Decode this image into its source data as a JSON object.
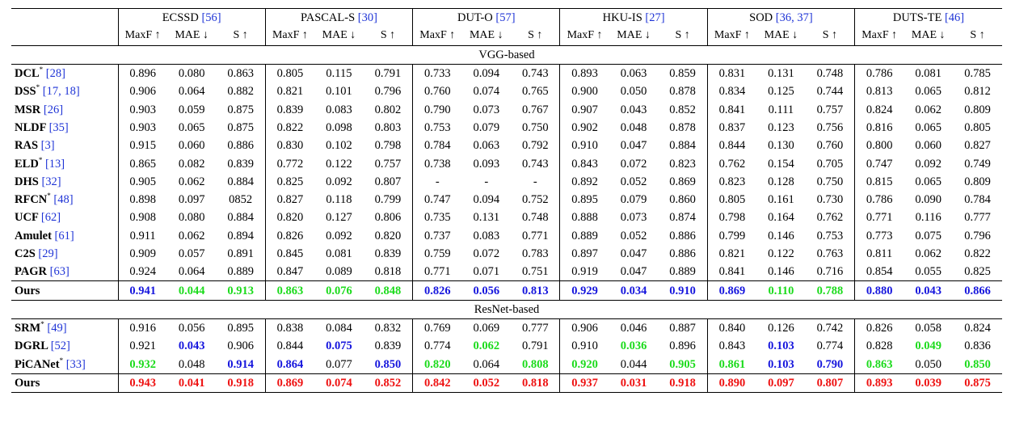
{
  "datasets": [
    {
      "name": "ECSSD",
      "ref": "[56]"
    },
    {
      "name": "PASCAL-S",
      "ref": "[30]"
    },
    {
      "name": "DUT-O",
      "ref": "[57]"
    },
    {
      "name": "HKU-IS",
      "ref": "[27]"
    },
    {
      "name": "SOD",
      "ref": "[36, 37]"
    },
    {
      "name": "DUTS-TE",
      "ref": "[46]"
    }
  ],
  "metrics": [
    "MaxF ↑",
    "MAE ↓",
    "S ↑"
  ],
  "color_legend": {
    "b": "#1515dd",
    "g": "#1bdb1b",
    "r": "#ee1111"
  },
  "sections": [
    {
      "title": "VGG-based",
      "rows": [
        {
          "name": "DCL",
          "star": true,
          "ref": "[28]",
          "values": [
            "0.896",
            "0.080",
            "0.863",
            "0.805",
            "0.115",
            "0.791",
            "0.733",
            "0.094",
            "0.743",
            "0.893",
            "0.063",
            "0.859",
            "0.831",
            "0.131",
            "0.748",
            "0.786",
            "0.081",
            "0.785"
          ]
        },
        {
          "name": "DSS",
          "star": true,
          "ref": "[17, 18]",
          "values": [
            "0.906",
            "0.064",
            "0.882",
            "0.821",
            "0.101",
            "0.796",
            "0.760",
            "0.074",
            "0.765",
            "0.900",
            "0.050",
            "0.878",
            "0.834",
            "0.125",
            "0.744",
            "0.813",
            "0.065",
            "0.812"
          ]
        },
        {
          "name": "MSR",
          "star": false,
          "ref": "[26]",
          "values": [
            "0.903",
            "0.059",
            "0.875",
            "0.839",
            "0.083",
            "0.802",
            "0.790",
            "0.073",
            "0.767",
            "0.907",
            "0.043",
            "0.852",
            "0.841",
            "0.111",
            "0.757",
            "0.824",
            "0.062",
            "0.809"
          ]
        },
        {
          "name": "NLDF",
          "star": false,
          "ref": "[35]",
          "values": [
            "0.903",
            "0.065",
            "0.875",
            "0.822",
            "0.098",
            "0.803",
            "0.753",
            "0.079",
            "0.750",
            "0.902",
            "0.048",
            "0.878",
            "0.837",
            "0.123",
            "0.756",
            "0.816",
            "0.065",
            "0.805"
          ]
        },
        {
          "name": "RAS",
          "star": false,
          "ref": "[3]",
          "values": [
            "0.915",
            "0.060",
            "0.886",
            "0.830",
            "0.102",
            "0.798",
            "0.784",
            "0.063",
            "0.792",
            "0.910",
            "0.047",
            "0.884",
            "0.844",
            "0.130",
            "0.760",
            "0.800",
            "0.060",
            "0.827"
          ]
        },
        {
          "name": "ELD",
          "star": true,
          "ref": "[13]",
          "values": [
            "0.865",
            "0.082",
            "0.839",
            "0.772",
            "0.122",
            "0.757",
            "0.738",
            "0.093",
            "0.743",
            "0.843",
            "0.072",
            "0.823",
            "0.762",
            "0.154",
            "0.705",
            "0.747",
            "0.092",
            "0.749"
          ]
        },
        {
          "name": "DHS",
          "star": false,
          "ref": "[32]",
          "values": [
            "0.905",
            "0.062",
            "0.884",
            "0.825",
            "0.092",
            "0.807",
            "-",
            "-",
            "-",
            "0.892",
            "0.052",
            "0.869",
            "0.823",
            "0.128",
            "0.750",
            "0.815",
            "0.065",
            "0.809"
          ]
        },
        {
          "name": "RFCN",
          "star": true,
          "ref": "[48]",
          "values": [
            "0.898",
            "0.097",
            "0852",
            "0.827",
            "0.118",
            "0.799",
            "0.747",
            "0.094",
            "0.752",
            "0.895",
            "0.079",
            "0.860",
            "0.805",
            "0.161",
            "0.730",
            "0.786",
            "0.090",
            "0.784"
          ]
        },
        {
          "name": "UCF",
          "star": false,
          "ref": "[62]",
          "values": [
            "0.908",
            "0.080",
            "0.884",
            "0.820",
            "0.127",
            "0.806",
            "0.735",
            "0.131",
            "0.748",
            "0.888",
            "0.073",
            "0.874",
            "0.798",
            "0.164",
            "0.762",
            "0.771",
            "0.116",
            "0.777"
          ]
        },
        {
          "name": "Amulet",
          "star": false,
          "ref": "[61]",
          "values": [
            "0.911",
            "0.062",
            "0.894",
            "0.826",
            "0.092",
            "0.820",
            "0.737",
            "0.083",
            "0.771",
            "0.889",
            "0.052",
            "0.886",
            "0.799",
            "0.146",
            "0.753",
            "0.773",
            "0.075",
            "0.796"
          ]
        },
        {
          "name": "C2S",
          "star": false,
          "ref": "[29]",
          "values": [
            "0.909",
            "0.057",
            "0.891",
            "0.845",
            "0.081",
            "0.839",
            "0.759",
            "0.072",
            "0.783",
            "0.897",
            "0.047",
            "0.886",
            "0.821",
            "0.122",
            "0.763",
            "0.811",
            "0.062",
            "0.822"
          ]
        },
        {
          "name": "PAGR",
          "star": false,
          "ref": "[63]",
          "values": [
            "0.924",
            "0.064",
            "0.889",
            "0.847",
            "0.089",
            "0.818",
            "0.771",
            "0.071",
            "0.751",
            "0.919",
            "0.047",
            "0.889",
            "0.841",
            "0.146",
            "0.716",
            "0.854",
            "0.055",
            "0.825"
          ]
        },
        {
          "name": "Ours",
          "star": false,
          "ref": "",
          "ours": true,
          "values": [
            "0.941",
            "0.044",
            "0.913",
            "0.863",
            "0.076",
            "0.848",
            "0.826",
            "0.056",
            "0.813",
            "0.929",
            "0.034",
            "0.910",
            "0.869",
            "0.110",
            "0.788",
            "0.880",
            "0.043",
            "0.866"
          ],
          "colors": [
            "b",
            "g",
            "g",
            "g",
            "g",
            "g",
            "b",
            "b",
            "b",
            "b",
            "b",
            "b",
            "b",
            "g",
            "g",
            "b",
            "b",
            "b"
          ]
        }
      ]
    },
    {
      "title": "ResNet-based",
      "rows": [
        {
          "name": "SRM",
          "star": true,
          "ref": "[49]",
          "values": [
            "0.916",
            "0.056",
            "0.895",
            "0.838",
            "0.084",
            "0.832",
            "0.769",
            "0.069",
            "0.777",
            "0.906",
            "0.046",
            "0.887",
            "0.840",
            "0.126",
            "0.742",
            "0.826",
            "0.058",
            "0.824"
          ]
        },
        {
          "name": "DGRL",
          "star": false,
          "ref": "[52]",
          "values": [
            "0.921",
            "0.043",
            "0.906",
            "0.844",
            "0.075",
            "0.839",
            "0.774",
            "0.062",
            "0.791",
            "0.910",
            "0.036",
            "0.896",
            "0.843",
            "0.103",
            "0.774",
            "0.828",
            "0.049",
            "0.836"
          ],
          "colors": [
            "",
            "b",
            "",
            "",
            "b",
            "",
            "",
            "g",
            "",
            "",
            "g",
            "",
            "",
            "b",
            "",
            "",
            "g",
            ""
          ]
        },
        {
          "name": "PiCANet",
          "star": true,
          "ref": "[33]",
          "values": [
            "0.932",
            "0.048",
            "0.914",
            "0.864",
            "0.077",
            "0.850",
            "0.820",
            "0.064",
            "0.808",
            "0.920",
            "0.044",
            "0.905",
            "0.861",
            "0.103",
            "0.790",
            "0.863",
            "0.050",
            "0.850"
          ],
          "colors": [
            "g",
            "",
            "b",
            "b",
            "",
            "b",
            "g",
            "",
            "g",
            "g",
            "",
            "g",
            "g",
            "b",
            "b",
            "g",
            "",
            "g"
          ]
        },
        {
          "name": "Ours",
          "star": false,
          "ref": "",
          "ours": true,
          "values": [
            "0.943",
            "0.041",
            "0.918",
            "0.869",
            "0.074",
            "0.852",
            "0.842",
            "0.052",
            "0.818",
            "0.937",
            "0.031",
            "0.918",
            "0.890",
            "0.097",
            "0.807",
            "0.893",
            "0.039",
            "0.875"
          ],
          "colors": [
            "r",
            "r",
            "r",
            "r",
            "r",
            "r",
            "r",
            "r",
            "r",
            "r",
            "r",
            "r",
            "r",
            "r",
            "r",
            "r",
            "r",
            "r"
          ]
        }
      ]
    }
  ]
}
